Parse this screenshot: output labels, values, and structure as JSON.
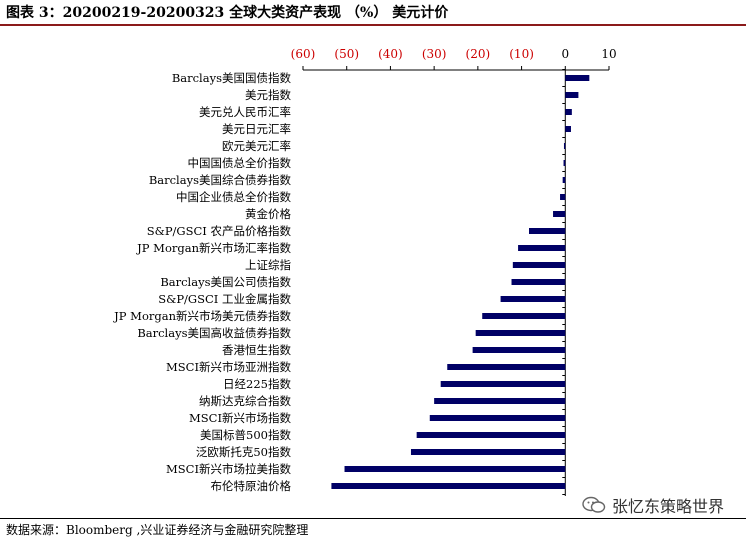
{
  "title": "图表 3：20200219-20200323 全球大类资产表现 （%） 美元计价",
  "source": "数据来源：Bloomberg ,兴业证券经济与金融研究院整理",
  "watermark": "张忆东策略世界",
  "colors": {
    "bar": "#000066",
    "negative_tick": "#cc0000",
    "positive_tick": "#000000",
    "title_rule": "#8b1a1a"
  },
  "chart_data": {
    "type": "bar",
    "orientation": "horizontal",
    "title": "",
    "xlabel": "",
    "ylabel": "",
    "xlim": [
      -60,
      10
    ],
    "x_ticks": [
      -60,
      -50,
      -40,
      -30,
      -20,
      -10,
      0,
      10
    ],
    "x_tick_labels": [
      "(60)",
      "(50)",
      "(40)",
      "(30)",
      "(20)",
      "(10)",
      "0",
      "10"
    ],
    "axis_position": "top",
    "grid": false,
    "categories": [
      "Barclays美国国债指数",
      "美元指数",
      "美元兑人民币汇率",
      "美元日元汇率",
      "欧元美元汇率",
      "中国国债总全价指数",
      "Barclays美国综合债券指数",
      "中国企业债总全价指数",
      "黄金价格",
      "S&P/GSCI 农产品价格指数",
      "JP Morgan新兴市场汇率指数",
      "上证综指",
      "Barclays美国公司债指数",
      "S&P/GSCI 工业金属指数",
      "JP Morgan新兴市场美元债券指数",
      "Barclays美国高收益债券指数",
      "香港恒生指数",
      "MSCI新兴市场亚洲指数",
      "日经225指数",
      "纳斯达克综合指数",
      "MSCI新兴市场指数",
      "美国标普500指数",
      "泛欧斯托克50指数",
      "MSCI新兴市场拉美指数",
      "布伦特原油价格"
    ],
    "values": [
      5.5,
      3.0,
      1.5,
      1.3,
      -0.3,
      -0.4,
      -0.6,
      -1.2,
      -2.8,
      -8.3,
      -10.8,
      -12.0,
      -12.3,
      -14.8,
      -19.0,
      -20.5,
      -21.2,
      -27.0,
      -28.5,
      -30.0,
      -31.0,
      -34.0,
      -35.3,
      -50.5,
      -53.5
    ]
  }
}
